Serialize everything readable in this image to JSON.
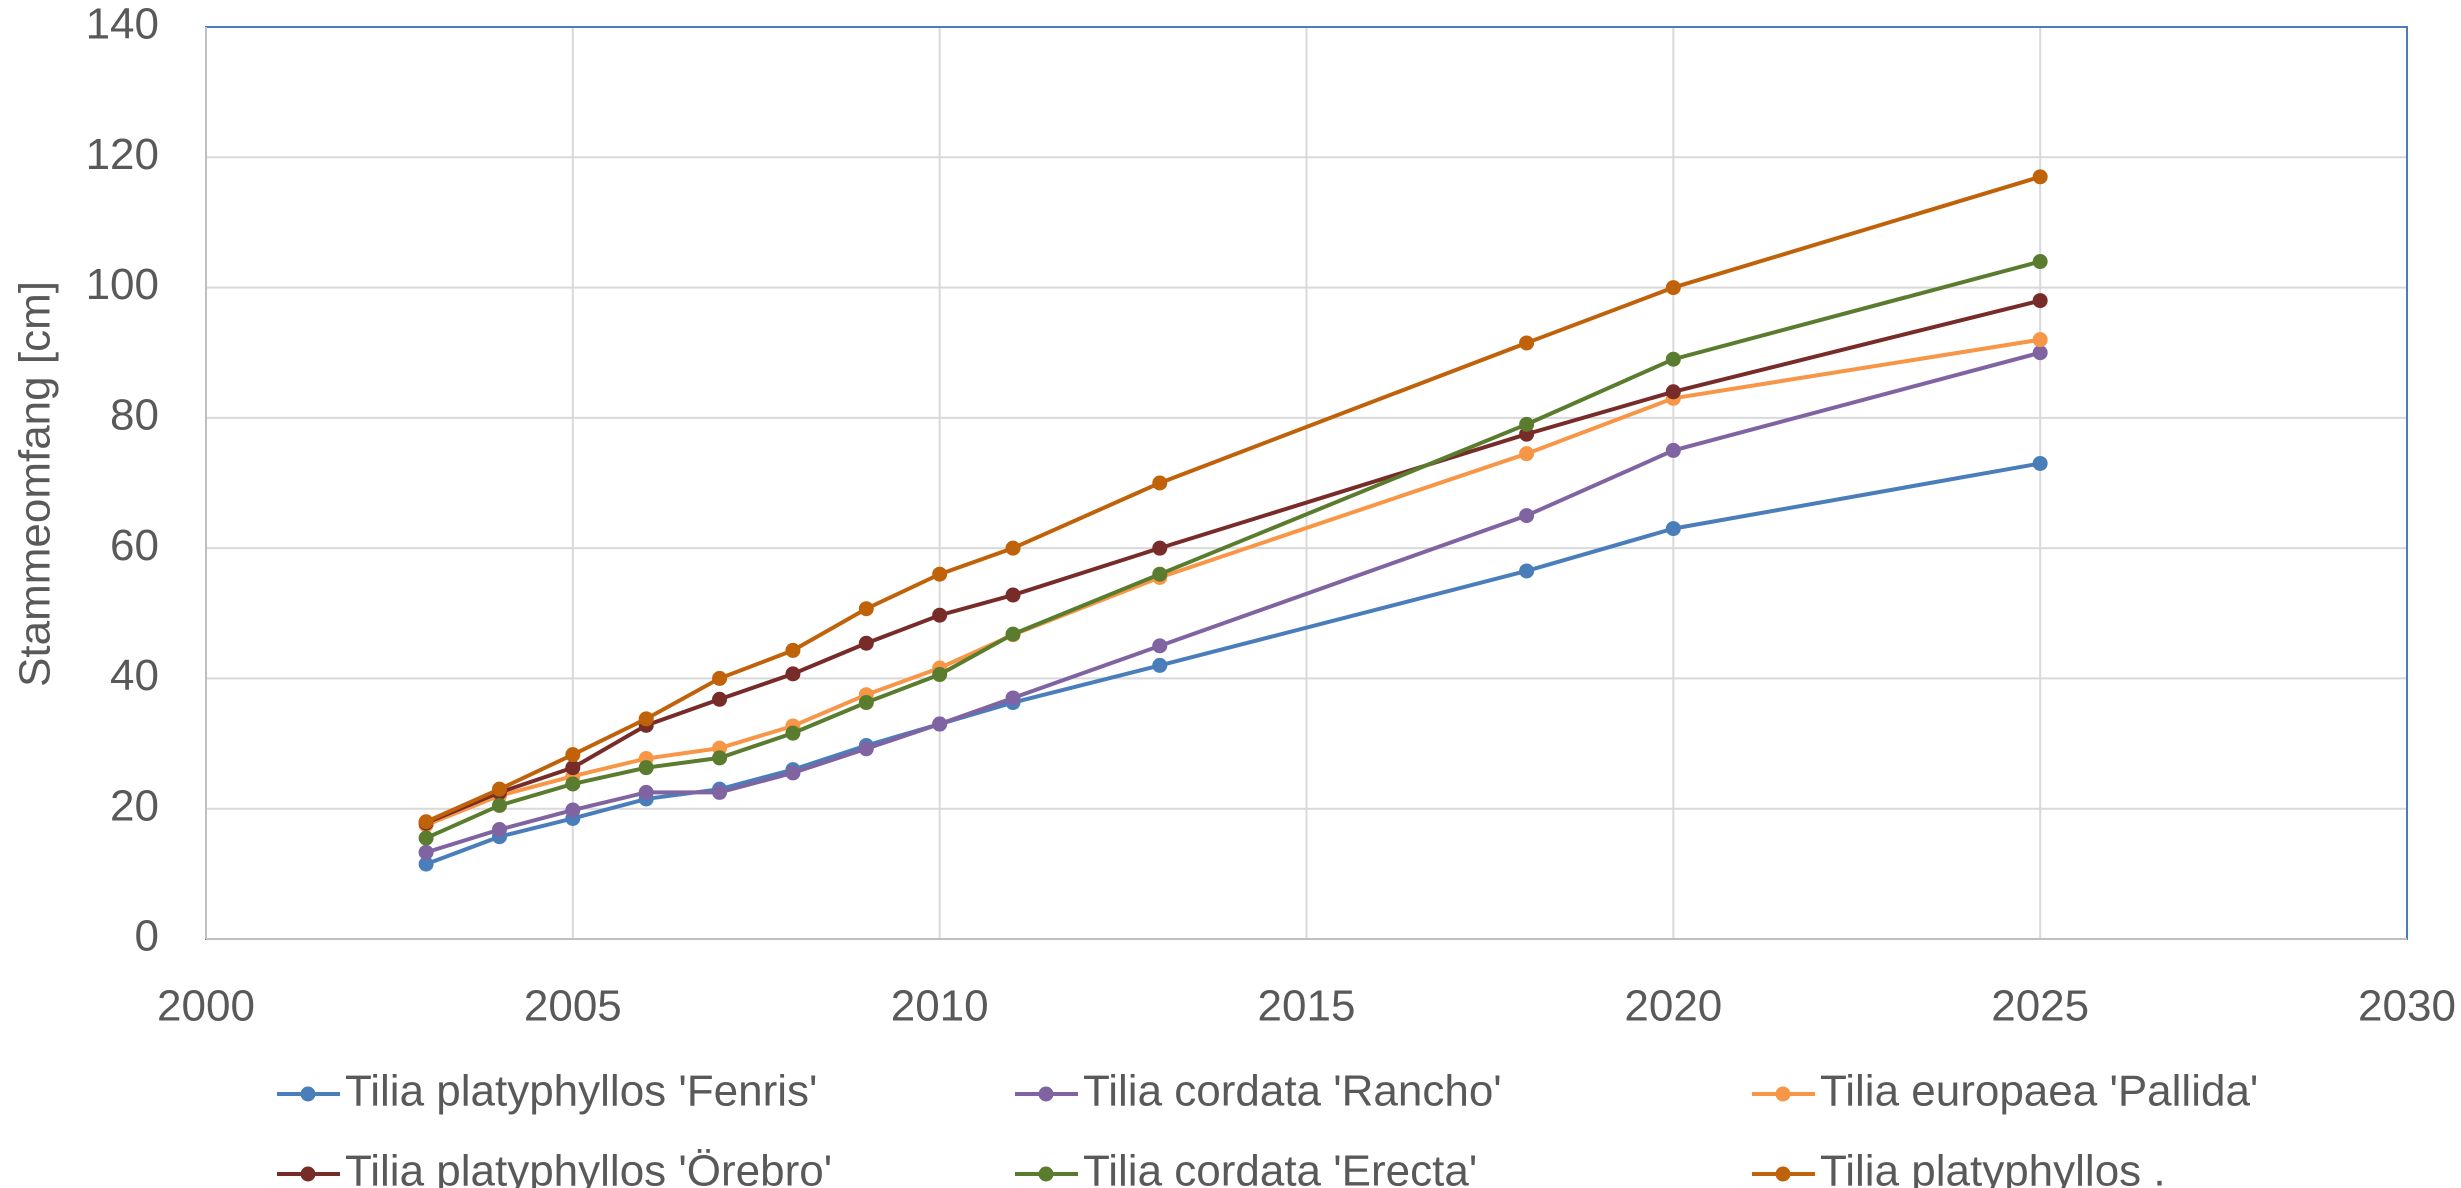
{
  "chart_data": {
    "type": "line",
    "y_label": "Stammeomfang [cm]",
    "x": [
      2003,
      2004,
      2005,
      2006,
      2007,
      2008,
      2009,
      2010,
      2011,
      2013,
      2018,
      2020,
      2025
    ],
    "series": [
      {
        "name": "Tilia platyphyllos 'Fenris'",
        "color": "#4a7ebb",
        "values": [
          11.5,
          15.7,
          18.5,
          21.5,
          23,
          26,
          29.7,
          33,
          36.3,
          42,
          56.5,
          63,
          73
        ]
      },
      {
        "name": "Tilia cordata 'Rancho'",
        "color": "#8064a2",
        "values": [
          13.3,
          16.8,
          19.8,
          22.5,
          22.5,
          25.5,
          29.2,
          33,
          37,
          45,
          65,
          75,
          90
        ]
      },
      {
        "name": "Tilia europaea 'Pallida'",
        "color": "#f79646",
        "values": [
          17.5,
          22,
          25,
          27.7,
          29.3,
          32.7,
          37.5,
          41.6,
          46.7,
          55.5,
          74.5,
          83,
          92
        ]
      },
      {
        "name": "Tilia platyphyllos 'Örebro'",
        "color": "#772c2a",
        "values": [
          17.8,
          22.5,
          26.3,
          32.8,
          36.8,
          40.7,
          45.4,
          49.7,
          52.8,
          60,
          77.5,
          84,
          98
        ]
      },
      {
        "name": "Tilia cordata 'Erecta'",
        "color": "#5a7c2e",
        "values": [
          15.5,
          20.5,
          23.8,
          26.3,
          27.8,
          31.6,
          36.3,
          40.6,
          46.8,
          56,
          79,
          89,
          104
        ]
      },
      {
        "name": "Tilia platyphyllos .",
        "color": "#c0620a",
        "values": [
          18,
          23,
          28.3,
          33.8,
          40,
          44.3,
          50.7,
          56,
          60,
          70,
          91.5,
          100,
          117
        ]
      }
    ],
    "xlim": [
      2000,
      2030
    ],
    "xticks": [
      2000,
      2005,
      2010,
      2015,
      2020,
      2025,
      2030
    ],
    "ylim": [
      0,
      140
    ],
    "yticks": [
      0,
      20,
      40,
      60,
      80,
      100,
      120,
      140
    ],
    "grid": true,
    "legend": "bottom"
  }
}
